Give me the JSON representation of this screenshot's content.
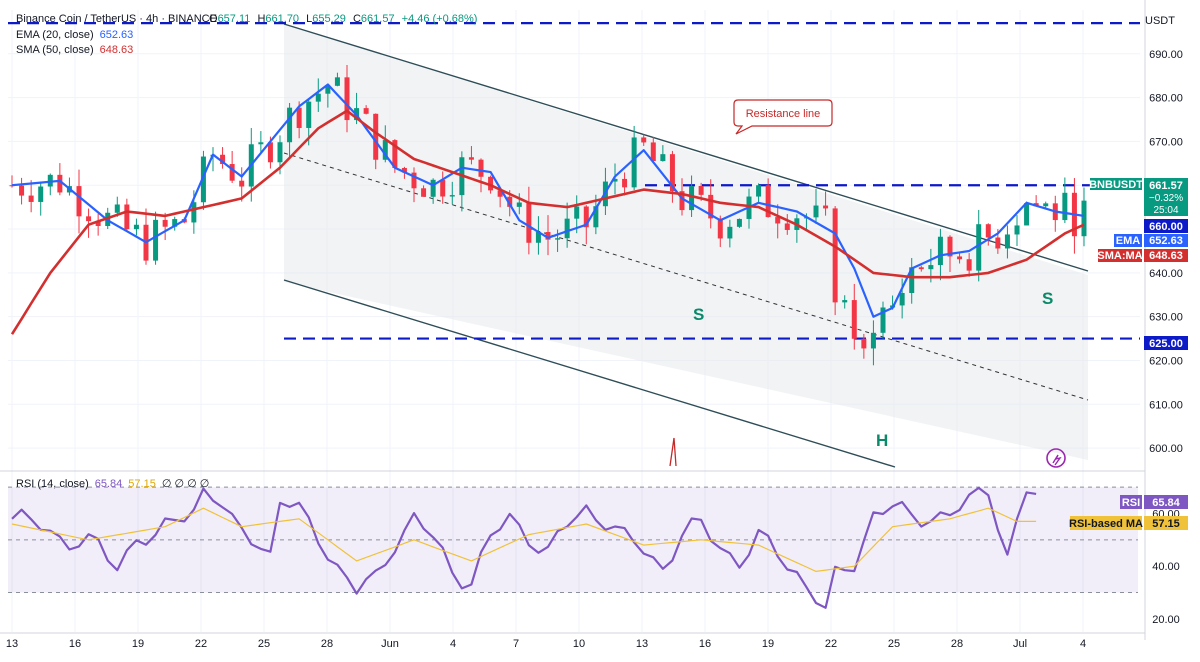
{
  "header": {
    "symbol": "Binance Coin / TetherUS · 4h · BINANCE",
    "ohlc": [
      {
        "k": "O",
        "v": "657.11"
      },
      {
        "k": "H",
        "v": "661.70"
      },
      {
        "k": "L",
        "v": "655.29"
      },
      {
        "k": "C",
        "v": "661.57"
      }
    ],
    "change": "+4.46 (+0.68%)",
    "ema_label": "EMA (20, close)",
    "ema_value": "652.63",
    "sma_label": "SMA (50, close)",
    "sma_value": "648.63",
    "rsi_label": "RSI (14, close)",
    "rsi_value": "65.84",
    "rsi_ma_value": "57.15",
    "rsi_extra": "∅ ∅ ∅ ∅"
  },
  "currency": "USDT",
  "colors": {
    "up": "#089981",
    "down": "#f23645",
    "ema": "#2962ff",
    "sma": "#d32f2f",
    "level": "#0d1ac8",
    "channel": "#2e4d57",
    "rsi": "#7e57c2",
    "rsi_ma": "#f0c23a"
  },
  "chart_data": [
    {
      "type": "candlestick",
      "y_range": [
        595,
        700
      ],
      "y_ticks": [
        600,
        610,
        620,
        630,
        640,
        650,
        660,
        670,
        680,
        690
      ],
      "x_tick_labels": [
        "13",
        "16",
        "19",
        "22",
        "25",
        "28",
        "Jun",
        "4",
        "7",
        "10",
        "13",
        "16",
        "19",
        "22",
        "25",
        "28",
        "Jul",
        "4"
      ],
      "levels": [
        697,
        660,
        625
      ],
      "series": [
        {
          "name": "EMA",
          "values_anchor": [
            [
              0,
              660
            ],
            [
              5,
              661
            ],
            [
              10,
              652
            ],
            [
              14,
              647
            ],
            [
              18,
              652
            ],
            [
              21,
              667
            ],
            [
              24,
              662
            ],
            [
              27,
              670
            ],
            [
              30,
              678
            ],
            [
              33,
              683
            ],
            [
              36,
              676
            ],
            [
              40,
              664
            ],
            [
              44,
              660
            ],
            [
              47,
              664
            ],
            [
              50,
              663
            ],
            [
              53,
              652
            ],
            [
              56,
              648
            ],
            [
              60,
              651
            ],
            [
              63,
              662
            ],
            [
              66,
              668
            ],
            [
              70,
              657
            ],
            [
              74,
              652
            ],
            [
              78,
              656
            ],
            [
              82,
              654
            ],
            [
              86,
              649
            ],
            [
              88,
              641
            ],
            [
              90,
              630
            ],
            [
              92,
              632
            ],
            [
              94,
              641
            ],
            [
              97,
              644
            ],
            [
              100,
              645
            ],
            [
              103,
              649
            ],
            [
              106,
              656
            ],
            [
              109,
              654
            ],
            [
              112,
              653
            ]
          ]
        },
        {
          "name": "SMA:MA",
          "values_anchor": [
            [
              0,
              626
            ],
            [
              4,
              640
            ],
            [
              8,
              651
            ],
            [
              12,
              654
            ],
            [
              16,
              653
            ],
            [
              20,
              655
            ],
            [
              24,
              657
            ],
            [
              28,
              664
            ],
            [
              32,
              673
            ],
            [
              35,
              677
            ],
            [
              38,
              672
            ],
            [
              42,
              666
            ],
            [
              46,
              663
            ],
            [
              50,
              660
            ],
            [
              54,
              656
            ],
            [
              58,
              655
            ],
            [
              62,
              657
            ],
            [
              66,
              659
            ],
            [
              70,
              658
            ],
            [
              74,
              656
            ],
            [
              78,
              655
            ],
            [
              82,
              651
            ],
            [
              86,
              646
            ],
            [
              90,
              640
            ],
            [
              94,
              639
            ],
            [
              98,
              639
            ],
            [
              102,
              640
            ],
            [
              106,
              643
            ],
            [
              110,
              649
            ],
            [
              112,
              651
            ]
          ]
        }
      ],
      "annotations": [
        "Resistance line",
        "S",
        "H",
        "S"
      ],
      "price_tags": [
        {
          "label": "BNBUSDT",
          "value": "661.57",
          "sub1": "−0.32%",
          "sub2": "25:04"
        },
        {
          "label": "",
          "value": "660.00"
        },
        {
          "label": "EMA",
          "value": "652.63"
        },
        {
          "label": "SMA:MA",
          "value": "648.63"
        },
        {
          "label": "",
          "value": "625.00"
        }
      ]
    },
    {
      "type": "line",
      "title": "RSI (14, close)",
      "y_range": [
        15,
        75
      ],
      "y_ticks": [
        20,
        40,
        60
      ],
      "bands": [
        70,
        50,
        30
      ],
      "series": [
        {
          "name": "RSI",
          "values_anchor": [
            [
              0,
              58
            ],
            [
              3,
              55
            ],
            [
              6,
              50
            ],
            [
              9,
              47
            ],
            [
              11,
              40
            ],
            [
              13,
              52
            ],
            [
              15,
              49
            ],
            [
              17,
              58
            ],
            [
              19,
              62
            ],
            [
              20,
              70
            ],
            [
              21,
              67
            ],
            [
              23,
              55
            ],
            [
              25,
              52
            ],
            [
              27,
              45
            ],
            [
              28,
              65
            ],
            [
              30,
              60
            ],
            [
              32,
              52
            ],
            [
              34,
              40
            ],
            [
              36,
              30
            ],
            [
              38,
              35
            ],
            [
              40,
              50
            ],
            [
              42,
              58
            ],
            [
              44,
              50
            ],
            [
              46,
              38
            ],
            [
              48,
              35
            ],
            [
              50,
              50
            ],
            [
              52,
              58
            ],
            [
              54,
              52
            ],
            [
              56,
              45
            ],
            [
              58,
              55
            ],
            [
              60,
              62
            ],
            [
              62,
              58
            ],
            [
              64,
              50
            ],
            [
              66,
              46
            ],
            [
              68,
              40
            ],
            [
              70,
              52
            ],
            [
              72,
              55
            ],
            [
              74,
              48
            ],
            [
              76,
              42
            ],
            [
              78,
              50
            ],
            [
              80,
              45
            ],
            [
              82,
              38
            ],
            [
              84,
              28
            ],
            [
              85,
              22
            ],
            [
              86,
              35
            ],
            [
              88,
              42
            ],
            [
              90,
              60
            ],
            [
              92,
              62
            ],
            [
              94,
              58
            ],
            [
              96,
              60
            ],
            [
              98,
              59
            ],
            [
              100,
              64
            ],
            [
              102,
              70
            ],
            [
              103,
              58
            ],
            [
              104,
              44
            ],
            [
              106,
              68
            ],
            [
              107,
              66
            ]
          ]
        },
        {
          "name": "RSI-based MA",
          "values_anchor": [
            [
              0,
              56
            ],
            [
              8,
              50
            ],
            [
              16,
              55
            ],
            [
              20,
              62
            ],
            [
              24,
              55
            ],
            [
              30,
              58
            ],
            [
              36,
              42
            ],
            [
              42,
              50
            ],
            [
              48,
              42
            ],
            [
              54,
              52
            ],
            [
              60,
              56
            ],
            [
              66,
              48
            ],
            [
              72,
              50
            ],
            [
              78,
              48
            ],
            [
              84,
              38
            ],
            [
              88,
              40
            ],
            [
              92,
              55
            ],
            [
              98,
              58
            ],
            [
              102,
              62
            ],
            [
              105,
              57
            ],
            [
              107,
              57
            ]
          ]
        }
      ],
      "tags": [
        {
          "label": "RSI",
          "value": "65.84"
        },
        {
          "label": "RSI-based MA",
          "value": "57.15"
        }
      ]
    }
  ]
}
